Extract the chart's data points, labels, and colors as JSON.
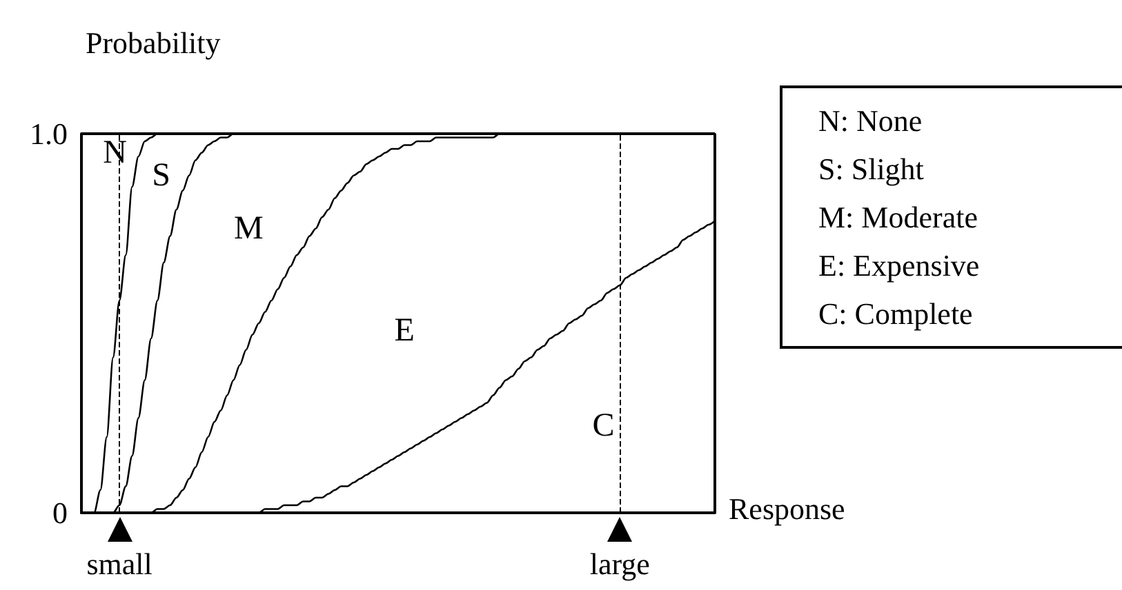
{
  "chart_data": {
    "type": "line",
    "ylabel": "Probability",
    "xlabel": "Response",
    "categories": [
      null,
      null,
      null,
      null,
      null,
      null,
      "small",
      null,
      null,
      null,
      null,
      null,
      null,
      null,
      null,
      null,
      null,
      null,
      null,
      null,
      null,
      null,
      null,
      null,
      null,
      null,
      null,
      null,
      null,
      null,
      null,
      null,
      null,
      null,
      null,
      null,
      null,
      null,
      null,
      null,
      null,
      null,
      null,
      null,
      null,
      null,
      null,
      null,
      null,
      null,
      null,
      null,
      null,
      null,
      null,
      null,
      null,
      null,
      null,
      null,
      null,
      null,
      null,
      null,
      null,
      null,
      null,
      null,
      null,
      null,
      null,
      null,
      null,
      null,
      null,
      null,
      null,
      null,
      null,
      null,
      null,
      null,
      null,
      null,
      null,
      "large",
      null,
      null,
      null,
      null,
      null,
      null,
      null,
      null,
      null,
      null,
      null,
      null,
      null,
      null,
      null
    ],
    "ylim": [
      0,
      1
    ],
    "yticks": [
      0,
      {
        "value": 1,
        "label": "1.0"
      }
    ],
    "grid": false,
    "marker": "none",
    "line_style": "solid",
    "series": [
      {
        "color": "#000000",
        "values": [
          0,
          0,
          0,
          0.06,
          0.2,
          0.41,
          0.56,
          0.68,
          0.86,
          0.94,
          0.98,
          0.99,
          1,
          1,
          1,
          1,
          1,
          1,
          1,
          1,
          1,
          1,
          1,
          1,
          1,
          1,
          1,
          1,
          1,
          1,
          1,
          1,
          1,
          1,
          1,
          1,
          1,
          1,
          1,
          1,
          1,
          1,
          1,
          1,
          1,
          1,
          1,
          1,
          1,
          1,
          1,
          1,
          1,
          1,
          1,
          1,
          1,
          1,
          1,
          1,
          1,
          1,
          1,
          1,
          1,
          1,
          1,
          1,
          1,
          1,
          1,
          1,
          1,
          1,
          1,
          1,
          1,
          1,
          1,
          1,
          1,
          1,
          1,
          1,
          1,
          1,
          1,
          1,
          1,
          1,
          1,
          1,
          1,
          1,
          1,
          1,
          1,
          1,
          1,
          1,
          1
        ]
      },
      {
        "color": "#000000",
        "values": [
          0,
          0,
          0,
          0,
          0,
          0,
          0.02,
          0.07,
          0.15,
          0.25,
          0.35,
          0.46,
          0.56,
          0.66,
          0.73,
          0.8,
          0.85,
          0.89,
          0.93,
          0.95,
          0.97,
          0.98,
          0.99,
          0.99,
          1,
          1,
          1,
          1,
          1,
          1,
          1,
          1,
          1,
          1,
          1,
          1,
          1,
          1,
          1,
          1,
          1,
          1,
          1,
          1,
          1,
          1,
          1,
          1,
          1,
          1,
          1,
          1,
          1,
          1,
          1,
          1,
          1,
          1,
          1,
          1,
          1,
          1,
          1,
          1,
          1,
          1,
          1,
          1,
          1,
          1,
          1,
          1,
          1,
          1,
          1,
          1,
          1,
          1,
          1,
          1,
          1,
          1,
          1,
          1,
          1,
          1,
          1,
          1,
          1,
          1,
          1,
          1,
          1,
          1,
          1,
          1,
          1,
          1,
          1,
          1,
          1
        ]
      },
      {
        "color": "#000000",
        "values": [
          0,
          0,
          0,
          0,
          0,
          0,
          0,
          0,
          0,
          0,
          0,
          0,
          0.01,
          0.01,
          0.02,
          0.04,
          0.06,
          0.09,
          0.12,
          0.16,
          0.2,
          0.24,
          0.27,
          0.31,
          0.35,
          0.39,
          0.43,
          0.47,
          0.5,
          0.53,
          0.56,
          0.59,
          0.62,
          0.65,
          0.68,
          0.7,
          0.73,
          0.75,
          0.78,
          0.8,
          0.83,
          0.85,
          0.87,
          0.89,
          0.9,
          0.92,
          0.93,
          0.94,
          0.95,
          0.96,
          0.96,
          0.97,
          0.97,
          0.98,
          0.98,
          0.98,
          0.99,
          0.99,
          0.99,
          0.99,
          0.99,
          0.99,
          0.99,
          0.99,
          0.99,
          0.99,
          1,
          1,
          1,
          1,
          1,
          1,
          1,
          1,
          1,
          1,
          1,
          1,
          1,
          1,
          1,
          1,
          1,
          1,
          1,
          1,
          1,
          1,
          1,
          1,
          1,
          1,
          1,
          1,
          1,
          1,
          1,
          1,
          1,
          1,
          1
        ]
      },
      {
        "color": "#000000",
        "values": [
          0,
          0,
          0,
          0,
          0,
          0,
          0,
          0,
          0,
          0,
          0,
          0,
          0,
          0,
          0,
          0,
          0,
          0,
          0,
          0,
          0,
          0,
          0,
          0,
          0,
          0,
          0,
          0,
          0,
          0.01,
          0.01,
          0.01,
          0.02,
          0.02,
          0.02,
          0.03,
          0.03,
          0.04,
          0.04,
          0.05,
          0.06,
          0.07,
          0.07,
          0.08,
          0.09,
          0.1,
          0.11,
          0.12,
          0.13,
          0.14,
          0.15,
          0.16,
          0.17,
          0.18,
          0.19,
          0.2,
          0.21,
          0.22,
          0.23,
          0.24,
          0.25,
          0.26,
          0.27,
          0.28,
          0.29,
          0.31,
          0.33,
          0.35,
          0.36,
          0.38,
          0.4,
          0.41,
          0.43,
          0.44,
          0.46,
          0.47,
          0.48,
          0.5,
          0.51,
          0.52,
          0.54,
          0.55,
          0.56,
          0.58,
          0.59,
          0.6,
          0.62,
          0.63,
          0.64,
          0.65,
          0.66,
          0.67,
          0.68,
          0.69,
          0.7,
          0.72,
          0.73,
          0.74,
          0.75,
          0.76,
          0.77
        ]
      }
    ],
    "ref_lines": [
      {
        "axis": "x",
        "value": "small",
        "color": "#000000",
        "line_style": "dashed"
      },
      {
        "axis": "x",
        "value": "large",
        "color": "#000000",
        "line_style": "dashed"
      }
    ],
    "annotations": [
      "N",
      "S",
      "M",
      "E",
      "C",
      "N: None",
      "S: Slight",
      "M: Moderate",
      "E: Expensive",
      "C: Complete"
    ]
  }
}
